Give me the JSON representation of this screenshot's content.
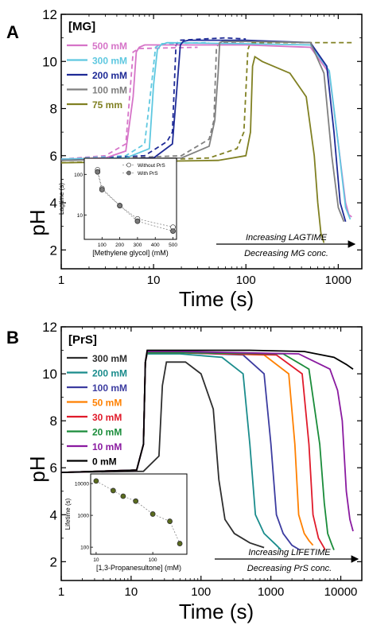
{
  "colors": {
    "axis": "#000000",
    "inset_marker": "#5a6b1e",
    "inset_marker_a": "#7a7a7a"
  },
  "chart_data": [
    {
      "type": "line",
      "panel_label": "A",
      "legend_title": "[MG]",
      "xlabel": "Time (s)",
      "ylabel": "pH",
      "x_scale": "log",
      "xlim": [
        1,
        1800
      ],
      "ylim": [
        1.2,
        12
      ],
      "xticks": [
        "1",
        "10",
        "100",
        "1000"
      ],
      "yticks": [
        "2",
        "4",
        "6",
        "8",
        "10",
        "12"
      ],
      "grid": false,
      "legend_position": "top-left",
      "annotation_top": "Increasing LAGTIME",
      "annotation_bottom": "Decreasing MG conc.",
      "series": [
        {
          "name": "500 mM",
          "color": "#d674c8",
          "x": [
            1,
            3,
            5,
            6,
            6.5,
            7,
            8,
            100,
            500,
            800,
            1000,
            1200,
            1300,
            1400
          ],
          "y": [
            5.85,
            5.9,
            6.2,
            8.5,
            10.4,
            10.6,
            10.7,
            10.7,
            10.6,
            9.5,
            6.5,
            4.0,
            3.5,
            3.4
          ]
        },
        {
          "name": "300 mM",
          "color": "#5fc8e0",
          "x": [
            1,
            5,
            9,
            10,
            11,
            12,
            14,
            100,
            500,
            800,
            1000,
            1200,
            1350
          ],
          "y": [
            5.85,
            5.9,
            6.3,
            9.0,
            10.5,
            10.7,
            10.8,
            10.75,
            10.7,
            9.6,
            6.5,
            3.8,
            3.3
          ]
        },
        {
          "name": "200 mM",
          "color": "#1e2a96",
          "x": [
            1,
            10,
            16,
            18,
            19.5,
            21,
            24,
            100,
            500,
            750,
            900,
            1050,
            1200
          ],
          "y": [
            5.8,
            5.9,
            6.5,
            9.0,
            10.7,
            10.85,
            10.9,
            10.9,
            10.8,
            9.8,
            7.0,
            4.0,
            3.2
          ]
        },
        {
          "name": "100 mM",
          "color": "#808080",
          "x": [
            1,
            20,
            40,
            46,
            50,
            52,
            56,
            100,
            500,
            700,
            850,
            1000,
            1150
          ],
          "y": [
            5.8,
            5.9,
            6.4,
            7.5,
            9.5,
            10.8,
            10.85,
            10.85,
            10.8,
            9.5,
            6.0,
            3.8,
            3.2
          ]
        },
        {
          "name": "75 mm",
          "color": "#808022",
          "x": [
            1,
            50,
            100,
            112,
            118,
            125,
            150,
            300,
            450,
            550,
            600,
            650,
            700
          ],
          "y": [
            5.7,
            5.8,
            6.0,
            7.0,
            9.8,
            10.2,
            10.0,
            9.5,
            8.5,
            6.0,
            4.0,
            2.7,
            2.3
          ]
        }
      ],
      "dashed_series": [
        {
          "color": "#d674c8",
          "x": [
            1,
            3,
            5,
            5.5,
            6,
            7,
            30
          ],
          "y": [
            5.85,
            6.0,
            6.5,
            8.5,
            10.4,
            10.55,
            10.6
          ]
        },
        {
          "color": "#5fc8e0",
          "x": [
            1,
            5,
            8,
            9.5,
            10.5,
            12,
            40
          ],
          "y": [
            5.85,
            6.0,
            6.5,
            9.0,
            10.6,
            10.75,
            10.8
          ]
        },
        {
          "color": "#1e2a96",
          "x": [
            1,
            8,
            14,
            16,
            17.5,
            19,
            60,
            100
          ],
          "y": [
            5.8,
            6.0,
            6.6,
            7.0,
            10.7,
            10.9,
            11.0,
            10.95
          ]
        },
        {
          "color": "#808080",
          "x": [
            1,
            20,
            40,
            45,
            48,
            52,
            120
          ],
          "y": [
            5.8,
            6.0,
            6.7,
            7.5,
            10.6,
            10.8,
            10.85
          ]
        },
        {
          "color": "#808022",
          "x": [
            1,
            40,
            80,
            95,
            105,
            112,
            200,
            1500
          ],
          "y": [
            5.7,
            5.9,
            6.3,
            7.0,
            10.5,
            10.8,
            10.8,
            10.8
          ]
        }
      ],
      "inset": {
        "xlabel": "[Methylene glycol] (mM)",
        "ylabel": "Lagtime (s)",
        "x_scale": "linear",
        "y_scale": "log",
        "xlim": [
          0,
          520
        ],
        "ylim": [
          2.5,
          250
        ],
        "xticks": [
          "100",
          "200",
          "300",
          "400",
          "500"
        ],
        "yticks": [
          "10",
          "100"
        ],
        "series": [
          {
            "name": "Without PrS",
            "marker": "open-circle",
            "x": [
              75,
              100,
              200,
              300,
              500
            ],
            "y": [
              130,
              45,
              17,
              8,
              5
            ]
          },
          {
            "name": "With PrS",
            "marker": "filled-circle",
            "x": [
              75,
              100,
              200,
              300,
              500
            ],
            "y": [
              115,
              42,
              17,
              7,
              4
            ]
          }
        ]
      }
    },
    {
      "type": "line",
      "panel_label": "B",
      "legend_title": "[PrS]",
      "xlabel": "Time (s)",
      "ylabel": "pH",
      "x_scale": "log",
      "xlim": [
        1,
        20000
      ],
      "ylim": [
        1.2,
        12
      ],
      "xticks": [
        "1",
        "10",
        "100",
        "1000",
        "10000"
      ],
      "yticks": [
        "2",
        "4",
        "6",
        "8",
        "10",
        "12"
      ],
      "grid": false,
      "legend_position": "top-left",
      "annotation_top": "Increasing LIFETIME",
      "annotation_bottom": "Decreasing PrS conc.",
      "series": [
        {
          "name": "300 mM",
          "color": "#2e2e2e",
          "x": [
            1,
            15,
            25,
            28,
            32,
            60,
            100,
            150,
            180,
            220,
            300,
            500,
            800
          ],
          "y": [
            5.8,
            5.85,
            6.5,
            9.5,
            10.5,
            10.5,
            10.0,
            8.5,
            5.5,
            3.8,
            3.2,
            2.8,
            2.6
          ]
        },
        {
          "name": "200 mM",
          "color": "#1a8c8c",
          "x": [
            1,
            12,
            15,
            16,
            17,
            50,
            200,
            400,
            500,
            600,
            800,
            1200,
            1400
          ],
          "y": [
            5.8,
            5.9,
            7.0,
            10.5,
            10.85,
            10.85,
            10.7,
            10.0,
            7.0,
            4.0,
            3.2,
            2.7,
            2.5
          ]
        },
        {
          "name": "100 mM",
          "color": "#3c3ca0",
          "x": [
            1,
            12,
            15,
            16,
            17,
            50,
            400,
            800,
            1000,
            1200,
            1500,
            2000,
            2600
          ],
          "y": [
            5.8,
            5.9,
            7.0,
            10.5,
            10.9,
            10.9,
            10.8,
            10.0,
            7.0,
            4.0,
            3.2,
            2.7,
            2.5
          ]
        },
        {
          "name": "50 mM",
          "color": "#ff8000",
          "x": [
            1,
            12,
            15,
            16,
            17,
            50,
            800,
            1800,
            2200,
            2500,
            3000,
            3500,
            4000
          ],
          "y": [
            5.8,
            5.9,
            7.0,
            10.5,
            10.9,
            10.9,
            10.8,
            10.0,
            7.0,
            4.0,
            3.2,
            2.9,
            2.7
          ]
        },
        {
          "name": "30 mM",
          "color": "#e01a2a",
          "x": [
            1,
            12,
            15,
            16,
            17,
            50,
            1200,
            2800,
            3500,
            4000,
            4800,
            5500,
            6000
          ],
          "y": [
            5.8,
            5.9,
            7.0,
            10.5,
            10.9,
            10.9,
            10.8,
            10.0,
            7.0,
            4.0,
            3.0,
            2.7,
            2.5
          ]
        },
        {
          "name": "20 mM",
          "color": "#1a8c3a",
          "x": [
            1,
            12,
            15,
            16,
            17,
            50,
            1500,
            3500,
            5000,
            5800,
            6500,
            7500,
            8000
          ],
          "y": [
            5.8,
            5.9,
            7.0,
            10.5,
            10.9,
            10.9,
            10.85,
            10.2,
            7.0,
            4.5,
            3.2,
            2.7,
            2.5
          ]
        },
        {
          "name": "10 mM",
          "color": "#8a1aa0",
          "x": [
            1,
            12,
            15,
            16,
            17,
            50,
            2500,
            7000,
            9000,
            10500,
            12000,
            13500,
            15000
          ],
          "y": [
            5.8,
            5.9,
            7.0,
            10.5,
            10.95,
            10.95,
            10.85,
            10.2,
            9.3,
            8.0,
            5.0,
            3.8,
            3.3
          ]
        },
        {
          "name": "0 mM",
          "color": "#000000",
          "x": [
            1,
            12,
            15,
            16,
            17,
            50,
            500,
            3000,
            8000,
            12000,
            15000
          ],
          "y": [
            5.8,
            5.9,
            7.0,
            10.5,
            11.0,
            11.0,
            11.0,
            10.95,
            10.7,
            10.4,
            10.2
          ]
        }
      ],
      "inset": {
        "xlabel": "[1,3-Propanesultone] (mM)",
        "ylabel": "Lifetime (s)",
        "x_scale": "log",
        "y_scale": "log",
        "xlim": [
          8,
          400
        ],
        "ylim": [
          60,
          20000
        ],
        "xticks": [
          "10",
          "100"
        ],
        "yticks": [
          "100",
          "1000",
          "10000"
        ],
        "series": [
          {
            "name": "",
            "marker": "filled-circle",
            "x": [
              10,
              20,
              30,
              50,
              100,
              200,
              300
            ],
            "y": [
              12000,
              6000,
              4000,
              2800,
              1100,
              650,
              130
            ]
          }
        ]
      }
    }
  ]
}
